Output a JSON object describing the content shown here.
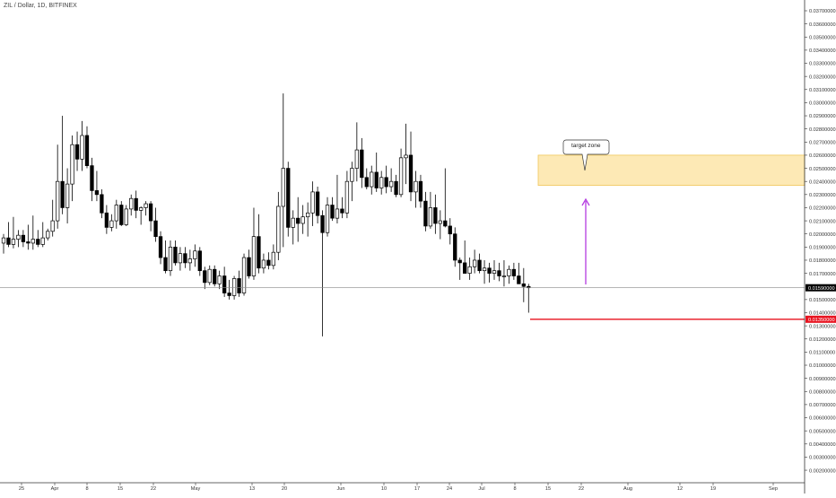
{
  "header": {
    "symbol_title": "ZIL / Dollar, 1D, BITFINEX"
  },
  "price_axis": {
    "labels": [
      "0.03700000",
      "0.03600000",
      "0.03500000",
      "0.03400000",
      "0.03300000",
      "0.03200000",
      "0.03100000",
      "0.03000000",
      "0.02900000",
      "0.02800000",
      "0.02700000",
      "0.02600000",
      "0.02500000",
      "0.02400000",
      "0.02300000",
      "0.02200000",
      "0.02100000",
      "0.02000000",
      "0.01900000",
      "0.01800000",
      "0.01700000",
      "0.01500000",
      "0.01400000",
      "0.01300000",
      "0.01200000",
      "0.01100000",
      "0.01000000",
      "0.00900000",
      "0.00800000",
      "0.00700000",
      "0.00600000",
      "0.00500000",
      "0.00400000",
      "0.00300000",
      "0.00200000"
    ],
    "current_price_label": "0.01590000",
    "support_price_label": "0.01350000",
    "current_badge_color": "#000000",
    "support_badge_color": "#e8121e"
  },
  "time_axis": {
    "labels": [
      "25",
      "Apr",
      "8",
      "15",
      "22",
      "May",
      "13",
      "20",
      "Jun",
      "10",
      "17",
      "24",
      "Jul",
      "8",
      "15",
      "22",
      "Aug",
      "12",
      "19",
      "Sep"
    ]
  },
  "annotations": {
    "target_label": "target zone",
    "zone_color": "#fde9b5",
    "zone_border_color": "#f0c65a",
    "arrow_color": "#b43be0",
    "support_line_color": "#e8121e"
  },
  "chart_data": {
    "type": "candlestick",
    "symbol": "ZIL / Dollar",
    "interval": "1D",
    "exchange": "BITFINEX",
    "candles": [
      {
        "o": 0.0193,
        "h": 0.02,
        "l": 0.0185,
        "c": 0.0197
      },
      {
        "o": 0.0197,
        "h": 0.0209,
        "l": 0.019,
        "c": 0.0192
      },
      {
        "o": 0.0192,
        "h": 0.0213,
        "l": 0.0189,
        "c": 0.0196
      },
      {
        "o": 0.0196,
        "h": 0.0203,
        "l": 0.019,
        "c": 0.0199
      },
      {
        "o": 0.0199,
        "h": 0.0203,
        "l": 0.019,
        "c": 0.0194
      },
      {
        "o": 0.0194,
        "h": 0.0207,
        "l": 0.0188,
        "c": 0.0193
      },
      {
        "o": 0.0193,
        "h": 0.0214,
        "l": 0.0188,
        "c": 0.0196
      },
      {
        "o": 0.0196,
        "h": 0.0203,
        "l": 0.019,
        "c": 0.0192
      },
      {
        "o": 0.0192,
        "h": 0.0209,
        "l": 0.019,
        "c": 0.0197
      },
      {
        "o": 0.0197,
        "h": 0.0204,
        "l": 0.0195,
        "c": 0.0202
      },
      {
        "o": 0.0202,
        "h": 0.0226,
        "l": 0.0198,
        "c": 0.021
      },
      {
        "o": 0.021,
        "h": 0.0268,
        "l": 0.0204,
        "c": 0.024
      },
      {
        "o": 0.024,
        "h": 0.029,
        "l": 0.0215,
        "c": 0.022
      },
      {
        "o": 0.022,
        "h": 0.025,
        "l": 0.0208,
        "c": 0.0238
      },
      {
        "o": 0.0238,
        "h": 0.0275,
        "l": 0.0225,
        "c": 0.0268
      },
      {
        "o": 0.0268,
        "h": 0.0278,
        "l": 0.0248,
        "c": 0.0257
      },
      {
        "o": 0.0257,
        "h": 0.0286,
        "l": 0.0248,
        "c": 0.0275
      },
      {
        "o": 0.0275,
        "h": 0.0282,
        "l": 0.025,
        "c": 0.0252
      },
      {
        "o": 0.0252,
        "h": 0.0258,
        "l": 0.0225,
        "c": 0.0233
      },
      {
        "o": 0.0233,
        "h": 0.0248,
        "l": 0.0225,
        "c": 0.023
      },
      {
        "o": 0.023,
        "h": 0.0234,
        "l": 0.0212,
        "c": 0.0216
      },
      {
        "o": 0.0216,
        "h": 0.0222,
        "l": 0.02,
        "c": 0.0205
      },
      {
        "o": 0.0205,
        "h": 0.0215,
        "l": 0.0202,
        "c": 0.021
      },
      {
        "o": 0.021,
        "h": 0.0226,
        "l": 0.0204,
        "c": 0.0222
      },
      {
        "o": 0.0222,
        "h": 0.0225,
        "l": 0.0206,
        "c": 0.0207
      },
      {
        "o": 0.0207,
        "h": 0.0222,
        "l": 0.0206,
        "c": 0.0219
      },
      {
        "o": 0.0219,
        "h": 0.023,
        "l": 0.0214,
        "c": 0.0227
      },
      {
        "o": 0.0227,
        "h": 0.0233,
        "l": 0.0212,
        "c": 0.0218
      },
      {
        "o": 0.0218,
        "h": 0.0221,
        "l": 0.0207,
        "c": 0.022
      },
      {
        "o": 0.022,
        "h": 0.0225,
        "l": 0.0214,
        "c": 0.0223
      },
      {
        "o": 0.0223,
        "h": 0.0225,
        "l": 0.0202,
        "c": 0.021
      },
      {
        "o": 0.021,
        "h": 0.022,
        "l": 0.0194,
        "c": 0.0198
      },
      {
        "o": 0.0198,
        "h": 0.0202,
        "l": 0.0177,
        "c": 0.0182
      },
      {
        "o": 0.0182,
        "h": 0.0195,
        "l": 0.017,
        "c": 0.0172
      },
      {
        "o": 0.0172,
        "h": 0.0195,
        "l": 0.0168,
        "c": 0.019
      },
      {
        "o": 0.019,
        "h": 0.0195,
        "l": 0.0176,
        "c": 0.0178
      },
      {
        "o": 0.0178,
        "h": 0.019,
        "l": 0.0172,
        "c": 0.0185
      },
      {
        "o": 0.0185,
        "h": 0.019,
        "l": 0.0174,
        "c": 0.0178
      },
      {
        "o": 0.0178,
        "h": 0.0188,
        "l": 0.0172,
        "c": 0.0181
      },
      {
        "o": 0.0181,
        "h": 0.0192,
        "l": 0.0175,
        "c": 0.0187
      },
      {
        "o": 0.0187,
        "h": 0.019,
        "l": 0.0168,
        "c": 0.0172
      },
      {
        "o": 0.0172,
        "h": 0.0175,
        "l": 0.0158,
        "c": 0.0163
      },
      {
        "o": 0.0163,
        "h": 0.0176,
        "l": 0.0161,
        "c": 0.0173
      },
      {
        "o": 0.0173,
        "h": 0.0176,
        "l": 0.016,
        "c": 0.0162
      },
      {
        "o": 0.0162,
        "h": 0.0172,
        "l": 0.0158,
        "c": 0.0168
      },
      {
        "o": 0.0168,
        "h": 0.0175,
        "l": 0.0152,
        "c": 0.0155
      },
      {
        "o": 0.0155,
        "h": 0.0165,
        "l": 0.015,
        "c": 0.0153
      },
      {
        "o": 0.0153,
        "h": 0.0168,
        "l": 0.015,
        "c": 0.0166
      },
      {
        "o": 0.0166,
        "h": 0.0172,
        "l": 0.0152,
        "c": 0.0155
      },
      {
        "o": 0.0155,
        "h": 0.0185,
        "l": 0.0153,
        "c": 0.0182
      },
      {
        "o": 0.0182,
        "h": 0.0188,
        "l": 0.0166,
        "c": 0.0168
      },
      {
        "o": 0.0168,
        "h": 0.022,
        "l": 0.0165,
        "c": 0.0198
      },
      {
        "o": 0.0198,
        "h": 0.0215,
        "l": 0.017,
        "c": 0.0174
      },
      {
        "o": 0.0174,
        "h": 0.0185,
        "l": 0.017,
        "c": 0.018
      },
      {
        "o": 0.018,
        "h": 0.0186,
        "l": 0.0173,
        "c": 0.0176
      },
      {
        "o": 0.0176,
        "h": 0.0192,
        "l": 0.0173,
        "c": 0.0186
      },
      {
        "o": 0.0186,
        "h": 0.0232,
        "l": 0.018,
        "c": 0.0221
      },
      {
        "o": 0.0221,
        "h": 0.0307,
        "l": 0.019,
        "c": 0.025
      },
      {
        "o": 0.025,
        "h": 0.0255,
        "l": 0.0198,
        "c": 0.0205
      },
      {
        "o": 0.0205,
        "h": 0.0218,
        "l": 0.0192,
        "c": 0.0212
      },
      {
        "o": 0.0212,
        "h": 0.0228,
        "l": 0.0194,
        "c": 0.0208
      },
      {
        "o": 0.0208,
        "h": 0.0222,
        "l": 0.02,
        "c": 0.0213
      },
      {
        "o": 0.0213,
        "h": 0.0224,
        "l": 0.0198,
        "c": 0.0216
      },
      {
        "o": 0.0216,
        "h": 0.024,
        "l": 0.0206,
        "c": 0.0232
      },
      {
        "o": 0.0232,
        "h": 0.0236,
        "l": 0.0208,
        "c": 0.0214
      },
      {
        "o": 0.0214,
        "h": 0.0218,
        "l": 0.0122,
        "c": 0.0201
      },
      {
        "o": 0.0201,
        "h": 0.0228,
        "l": 0.0198,
        "c": 0.0222
      },
      {
        "o": 0.0222,
        "h": 0.0228,
        "l": 0.021,
        "c": 0.0212
      },
      {
        "o": 0.0212,
        "h": 0.0245,
        "l": 0.0208,
        "c": 0.0219
      },
      {
        "o": 0.0219,
        "h": 0.0228,
        "l": 0.0212,
        "c": 0.0216
      },
      {
        "o": 0.0216,
        "h": 0.0248,
        "l": 0.0212,
        "c": 0.024
      },
      {
        "o": 0.024,
        "h": 0.0255,
        "l": 0.0225,
        "c": 0.025
      },
      {
        "o": 0.025,
        "h": 0.0285,
        "l": 0.024,
        "c": 0.0264
      },
      {
        "o": 0.0264,
        "h": 0.0273,
        "l": 0.0235,
        "c": 0.0243
      },
      {
        "o": 0.0243,
        "h": 0.025,
        "l": 0.0234,
        "c": 0.0236
      },
      {
        "o": 0.0236,
        "h": 0.0252,
        "l": 0.023,
        "c": 0.0247
      },
      {
        "o": 0.0247,
        "h": 0.0262,
        "l": 0.0232,
        "c": 0.0235
      },
      {
        "o": 0.0235,
        "h": 0.0248,
        "l": 0.023,
        "c": 0.0243
      },
      {
        "o": 0.0243,
        "h": 0.0252,
        "l": 0.0231,
        "c": 0.0236
      },
      {
        "o": 0.0236,
        "h": 0.025,
        "l": 0.0232,
        "c": 0.024
      },
      {
        "o": 0.024,
        "h": 0.0245,
        "l": 0.0228,
        "c": 0.023
      },
      {
        "o": 0.023,
        "h": 0.0265,
        "l": 0.0228,
        "c": 0.0258
      },
      {
        "o": 0.0258,
        "h": 0.0284,
        "l": 0.0238,
        "c": 0.026
      },
      {
        "o": 0.026,
        "h": 0.0278,
        "l": 0.0225,
        "c": 0.0232
      },
      {
        "o": 0.0232,
        "h": 0.0248,
        "l": 0.022,
        "c": 0.024
      },
      {
        "o": 0.024,
        "h": 0.0245,
        "l": 0.022,
        "c": 0.0225
      },
      {
        "o": 0.0225,
        "h": 0.0232,
        "l": 0.0202,
        "c": 0.0206
      },
      {
        "o": 0.0206,
        "h": 0.0232,
        "l": 0.0204,
        "c": 0.022
      },
      {
        "o": 0.022,
        "h": 0.023,
        "l": 0.02,
        "c": 0.0208
      },
      {
        "o": 0.0208,
        "h": 0.0218,
        "l": 0.0196,
        "c": 0.021
      },
      {
        "o": 0.021,
        "h": 0.025,
        "l": 0.0205,
        "c": 0.0206
      },
      {
        "o": 0.0206,
        "h": 0.0212,
        "l": 0.0192,
        "c": 0.02
      },
      {
        "o": 0.02,
        "h": 0.0205,
        "l": 0.0175,
        "c": 0.018
      },
      {
        "o": 0.018,
        "h": 0.0182,
        "l": 0.0165,
        "c": 0.0178
      },
      {
        "o": 0.0178,
        "h": 0.0195,
        "l": 0.017,
        "c": 0.017
      },
      {
        "o": 0.017,
        "h": 0.0182,
        "l": 0.0165,
        "c": 0.0175
      },
      {
        "o": 0.0175,
        "h": 0.0188,
        "l": 0.017,
        "c": 0.018
      },
      {
        "o": 0.018,
        "h": 0.0185,
        "l": 0.017,
        "c": 0.0172
      },
      {
        "o": 0.0172,
        "h": 0.018,
        "l": 0.0162,
        "c": 0.0174
      },
      {
        "o": 0.0174,
        "h": 0.0178,
        "l": 0.0163,
        "c": 0.017
      },
      {
        "o": 0.017,
        "h": 0.018,
        "l": 0.0165,
        "c": 0.0172
      },
      {
        "o": 0.0172,
        "h": 0.0178,
        "l": 0.0164,
        "c": 0.0168
      },
      {
        "o": 0.0168,
        "h": 0.018,
        "l": 0.016,
        "c": 0.0168
      },
      {
        "o": 0.0168,
        "h": 0.0176,
        "l": 0.0162,
        "c": 0.0173
      },
      {
        "o": 0.0173,
        "h": 0.0178,
        "l": 0.0165,
        "c": 0.0168
      },
      {
        "o": 0.0168,
        "h": 0.0178,
        "l": 0.0162,
        "c": 0.0162
      },
      {
        "o": 0.0162,
        "h": 0.0174,
        "l": 0.0148,
        "c": 0.016
      },
      {
        "o": 0.016,
        "h": 0.0162,
        "l": 0.014,
        "c": 0.0159
      }
    ],
    "current_price": 0.0159,
    "support_level": 0.0135,
    "target_zone": {
      "low": 0.0237,
      "high": 0.026
    },
    "y_range": [
      0.0018,
      0.0375
    ],
    "time_axis_ticks": [
      "25",
      "Apr",
      "8",
      "15",
      "22",
      "May",
      "13",
      "20",
      "Jun",
      "10",
      "17",
      "24",
      "Jul",
      "8",
      "15",
      "22",
      "Aug",
      "12",
      "19",
      "Sep"
    ],
    "grid": false,
    "legend": "none"
  }
}
